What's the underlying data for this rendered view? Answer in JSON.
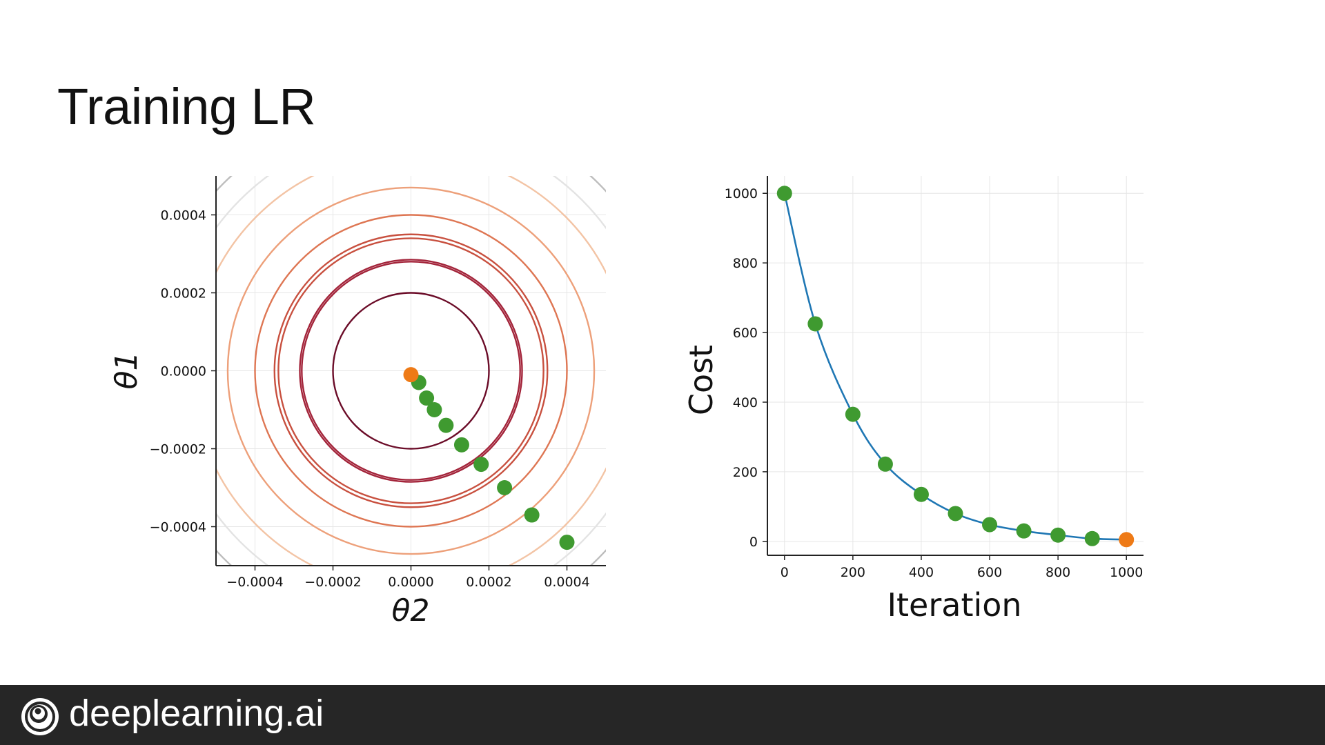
{
  "slide": {
    "title": "Training LR"
  },
  "footer": {
    "brand": "deeplearning.ai",
    "logo_icon": "concentric-circles-logo-icon"
  },
  "colors": {
    "green_point": "#3f9a30",
    "orange_point": "#ee7a16",
    "cost_line": "#1f77b4",
    "footer_bg": "#262626"
  },
  "chart_data": [
    {
      "type": "contour",
      "title": "",
      "xlabel": "θ2",
      "ylabel": "θ1",
      "xlim": [
        -0.0005,
        0.0005
      ],
      "ylim": [
        -0.0005,
        0.0005
      ],
      "xticks": [
        -0.0004,
        -0.0002,
        0.0,
        0.0002,
        0.0004
      ],
      "yticks": [
        -0.0004,
        -0.0002,
        0.0,
        0.0002,
        0.0004
      ],
      "xtick_labels": [
        "−0.0004",
        "−0.0002",
        "0.0000",
        "0.0002",
        "0.0004"
      ],
      "ytick_labels": [
        "−0.0004",
        "−0.0002",
        "0.0000",
        "0.0002",
        "0.0004"
      ],
      "grid": true,
      "contour_radii": [
        0.0002,
        0.00028,
        0.000285,
        0.00034,
        0.00035,
        0.0004,
        0.00047,
        0.00056,
        0.00062,
        0.00068,
        0.00074
      ],
      "contour_colors": [
        "#6b0c28",
        "#a3243a",
        "#a3243a",
        "#c8503f",
        "#c8503f",
        "#de7653",
        "#eda07a",
        "#f3c4a5",
        "#e3e3e3",
        "#bdbdbd",
        "#6e6e6e"
      ],
      "path_points": [
        {
          "x": 0.0004,
          "y": -0.00044
        },
        {
          "x": 0.00031,
          "y": -0.00037
        },
        {
          "x": 0.00024,
          "y": -0.0003
        },
        {
          "x": 0.00018,
          "y": -0.00024
        },
        {
          "x": 0.00013,
          "y": -0.00019
        },
        {
          "x": 9e-05,
          "y": -0.00014
        },
        {
          "x": 6e-05,
          "y": -0.0001
        },
        {
          "x": 4e-05,
          "y": -7e-05
        },
        {
          "x": 2e-05,
          "y": -3e-05
        }
      ],
      "final_point": {
        "x": 0.0,
        "y": -1e-05
      }
    },
    {
      "type": "line",
      "title": "",
      "xlabel": "Iteration",
      "ylabel": "Cost",
      "xlim": [
        -50,
        1050
      ],
      "ylim": [
        -40,
        1050
      ],
      "xticks": [
        0,
        200,
        400,
        600,
        800,
        1000
      ],
      "yticks": [
        0,
        200,
        400,
        600,
        800,
        1000
      ],
      "xtick_labels": [
        "0",
        "200",
        "400",
        "600",
        "800",
        "1000"
      ],
      "ytick_labels": [
        "0",
        "200",
        "400",
        "600",
        "800",
        "1000"
      ],
      "grid": true,
      "points": [
        {
          "x": 0,
          "y": 1000
        },
        {
          "x": 90,
          "y": 625
        },
        {
          "x": 200,
          "y": 365
        },
        {
          "x": 295,
          "y": 222
        },
        {
          "x": 400,
          "y": 135
        },
        {
          "x": 500,
          "y": 80
        },
        {
          "x": 600,
          "y": 48
        },
        {
          "x": 700,
          "y": 30
        },
        {
          "x": 800,
          "y": 18
        },
        {
          "x": 900,
          "y": 8
        }
      ],
      "final_point": {
        "x": 1000,
        "y": 5
      }
    }
  ]
}
